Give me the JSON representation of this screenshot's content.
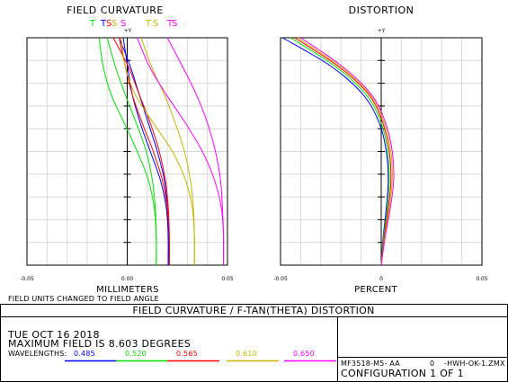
{
  "banner": "FIELD CURVATURE / F-TAN(THETA) DISTORTION",
  "note": "FIELD UNITS CHANGED TO FIELD ANGLE",
  "info": {
    "date": "TUE OCT 16 2018",
    "max_field": "MAXIMUM FIELD IS 8.603 DEGREES",
    "wavelengths_label": "WAVELENGTHS:",
    "wavelengths": [
      {
        "label": "0.485",
        "color": "#0000ff"
      },
      {
        "label": "0.520",
        "color": "#00e000"
      },
      {
        "label": "0.565",
        "color": "#ff0000"
      },
      {
        "label": "0.610",
        "color": "#c8b400"
      },
      {
        "label": "0.650",
        "color": "#ff00ff"
      }
    ]
  },
  "file": {
    "name": "MF3518-M5- AA",
    "zero": "0",
    "path": "-HWH-OK-1.ZMX",
    "configuration": "CONFIGURATION  1 OF  1"
  },
  "chart_data": [
    {
      "type": "line",
      "title": "FIELD CURVATURE",
      "xlabel": "MILLIMETERS",
      "yaxis_label": "+Y",
      "xlim": [
        -0.05,
        0.05
      ],
      "ylim": [
        0,
        8.603
      ],
      "xticks": [
        "-0.05",
        "0.00",
        "0.05"
      ],
      "legend": [
        {
          "label": "T",
          "color": "#00e000"
        },
        {
          "label": "T",
          "color": "#0000ff"
        },
        {
          "label": "S",
          "color": "#ff0000"
        },
        {
          "label": "S",
          "color": "#c8b400"
        },
        {
          "label": "S",
          "color": "#ff00ff"
        },
        {
          "label": "T",
          "color": "#c8b400"
        },
        {
          "label": "S",
          "color": "#c8b400"
        },
        {
          "label": "T",
          "color": "#ff00ff"
        },
        {
          "label": "S",
          "color": "#ff00ff"
        }
      ],
      "y": [
        0,
        1.075,
        2.151,
        3.226,
        4.301,
        5.377,
        6.452,
        7.527,
        8.603
      ],
      "series": [
        {
          "curve": "T",
          "color": "#0000ff",
          "values": [
            0.0205,
            0.0205,
            0.0195,
            0.0165,
            0.0115,
            0.0065,
            0.0025,
            0.0002,
            -0.002
          ]
        },
        {
          "curve": "S",
          "color": "#0000ff",
          "values": [
            0.0205,
            0.0205,
            0.02,
            0.0185,
            0.015,
            0.0105,
            0.006,
            0.0015,
            -0.004
          ]
        },
        {
          "curve": "T",
          "color": "#00e000",
          "values": [
            0.0145,
            0.0145,
            0.0135,
            0.0105,
            0.005,
            -0.0015,
            -0.008,
            -0.012,
            -0.014
          ]
        },
        {
          "curve": "S",
          "color": "#00e000",
          "values": [
            0.0145,
            0.0145,
            0.014,
            0.0125,
            0.0095,
            0.0045,
            -0.001,
            -0.006,
            -0.01
          ]
        },
        {
          "curve": "T",
          "color": "#ff0000",
          "values": [
            0.021,
            0.021,
            0.02,
            0.0175,
            0.013,
            0.0075,
            0.0025,
            -0.001,
            -0.004
          ]
        },
        {
          "curve": "S",
          "color": "#ff0000",
          "values": [
            0.021,
            0.021,
            0.0205,
            0.019,
            0.016,
            0.0115,
            0.006,
            0.0005,
            -0.007
          ]
        },
        {
          "curve": "T",
          "color": "#c8b400",
          "values": [
            0.0335,
            0.0335,
            0.0325,
            0.029,
            0.0225,
            0.013,
            0.004,
            -0.001,
            -0.003
          ]
        },
        {
          "curve": "S",
          "color": "#c8b400",
          "values": [
            0.0335,
            0.0335,
            0.033,
            0.0315,
            0.0285,
            0.024,
            0.0185,
            0.012,
            0.007
          ]
        },
        {
          "curve": "T",
          "color": "#ff00ff",
          "values": [
            0.048,
            0.048,
            0.047,
            0.0435,
            0.0375,
            0.029,
            0.0195,
            0.011,
            0.005
          ]
        },
        {
          "curve": "S",
          "color": "#ff00ff",
          "values": [
            0.048,
            0.048,
            0.0475,
            0.0465,
            0.044,
            0.04,
            0.0345,
            0.0275,
            0.02
          ]
        }
      ]
    },
    {
      "type": "line",
      "title": "DISTORTION",
      "xlabel": "PERCENT",
      "yaxis_label": "+Y",
      "xlim": [
        -0.05,
        0.05
      ],
      "ylim": [
        0,
        8.603
      ],
      "xticks": [
        "-0.05",
        "0",
        "0.05"
      ],
      "y": [
        0,
        1.075,
        2.151,
        3.226,
        4.301,
        5.377,
        6.452,
        7.527,
        8.603
      ],
      "series": [
        {
          "color": "#0000ff",
          "values": [
            0,
            0.001,
            0.0025,
            0.0035,
            0.0025,
            -0.001,
            -0.009,
            -0.025,
            -0.049
          ]
        },
        {
          "color": "#00e000",
          "values": [
            0,
            0.0012,
            0.003,
            0.004,
            0.0032,
            0.0,
            -0.0075,
            -0.023,
            -0.045
          ]
        },
        {
          "color": "#ff0000",
          "values": [
            0,
            0.0015,
            0.0035,
            0.0048,
            0.004,
            0.0008,
            -0.0062,
            -0.0215,
            -0.043
          ]
        },
        {
          "color": "#c8b400",
          "values": [
            0,
            0.0018,
            0.004,
            0.0055,
            0.0048,
            0.0015,
            -0.0055,
            -0.0205,
            -0.0415
          ]
        },
        {
          "color": "#ff00ff",
          "values": [
            0,
            0.002,
            0.0045,
            0.0062,
            0.0055,
            0.0022,
            -0.0048,
            -0.0195,
            -0.04
          ]
        }
      ]
    }
  ]
}
